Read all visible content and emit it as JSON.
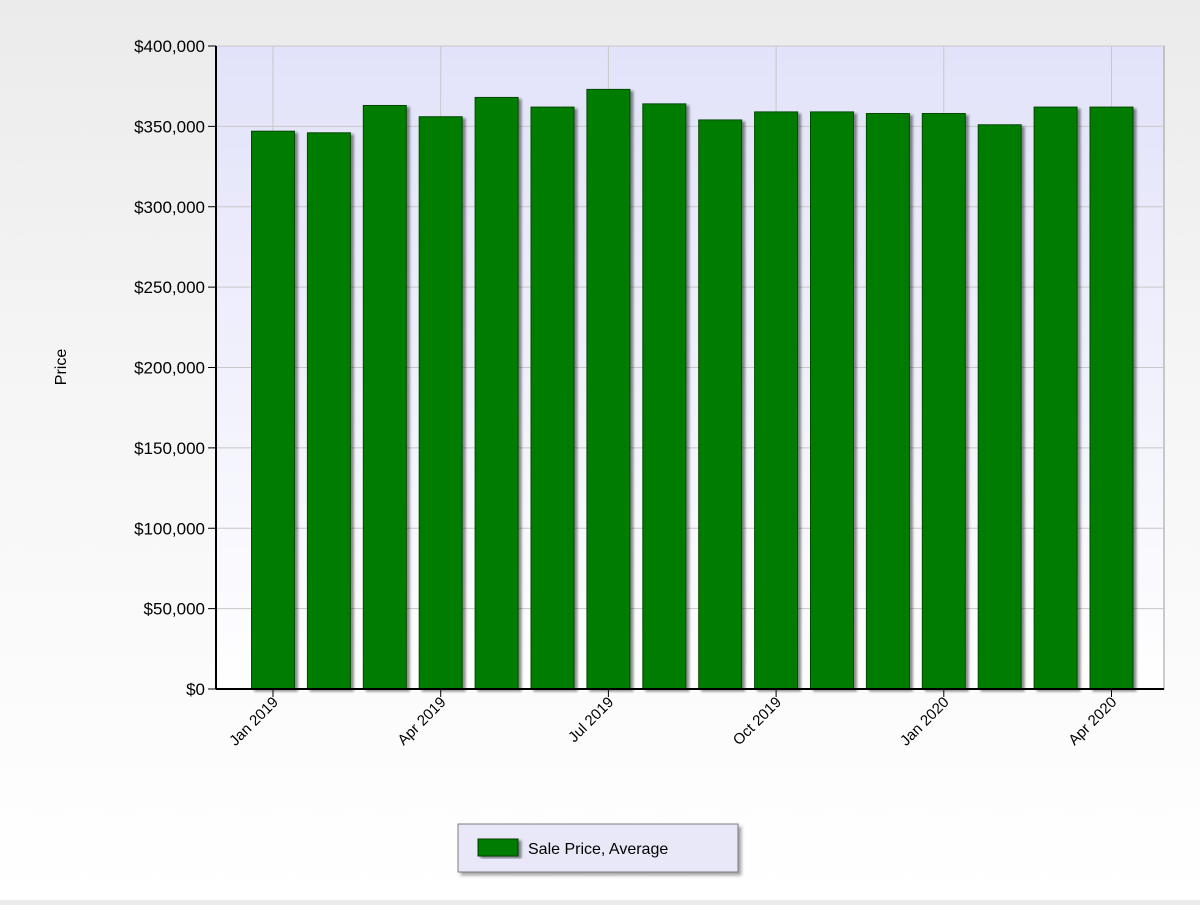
{
  "chart_data": {
    "type": "bar",
    "title": "",
    "xlabel": "",
    "ylabel": "Price",
    "ylim": [
      0,
      400000
    ],
    "yticks": [
      0,
      50000,
      100000,
      150000,
      200000,
      250000,
      300000,
      350000,
      400000
    ],
    "ytick_labels": [
      "$0",
      "$50,000",
      "$100,000",
      "$150,000",
      "$200,000",
      "$250,000",
      "$300,000",
      "$350,000",
      "$400,000"
    ],
    "categories": [
      "2019-01",
      "2019-02",
      "2019-03",
      "2019-04",
      "2019-05",
      "2019-06",
      "2019-07",
      "2019-08",
      "2019-09",
      "2019-10",
      "2019-11",
      "2019-12",
      "2020-01",
      "2020-02",
      "2020-03",
      "2020-04"
    ],
    "xtick_labels": [
      {
        "category": "2019-01",
        "label": "Jan 2019"
      },
      {
        "category": "2019-04",
        "label": "Apr 2019"
      },
      {
        "category": "2019-07",
        "label": "Jul 2019"
      },
      {
        "category": "2019-10",
        "label": "Oct 2019"
      },
      {
        "category": "2020-01",
        "label": "Jan 2020"
      },
      {
        "category": "2020-04",
        "label": "Apr 2020"
      }
    ],
    "series": [
      {
        "name": "Sale Price, Average",
        "color": "#007c00",
        "values": [
          347000,
          346000,
          363000,
          356000,
          368000,
          362000,
          373000,
          364000,
          354000,
          359000,
          359000,
          358000,
          358000,
          351000,
          362000,
          362000
        ]
      }
    ],
    "grid": true,
    "legend_position": "bottom-center"
  }
}
